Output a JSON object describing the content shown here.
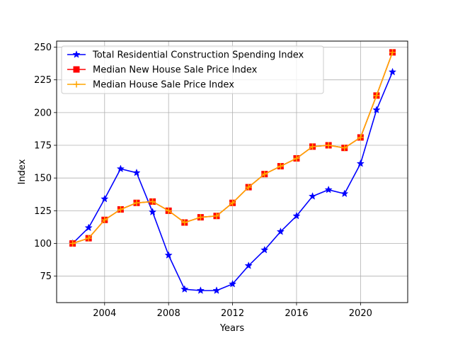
{
  "chart_data": {
    "type": "line",
    "xlabel": "Years",
    "ylabel": "Index",
    "xlim": [
      2001.0,
      2022.95
    ],
    "ylim": [
      54.8,
      254.6
    ],
    "xticks": [
      2004,
      2008,
      2012,
      2016,
      2020
    ],
    "xtick_labels": [
      "2004",
      "2008",
      "2012",
      "2016",
      "2020"
    ],
    "yticks": [
      75,
      100,
      125,
      150,
      175,
      200,
      225,
      250
    ],
    "ytick_labels": [
      "75",
      "100",
      "125",
      "150",
      "175",
      "200",
      "225",
      "250"
    ],
    "grid": true,
    "legend_position": "upper-left",
    "x": [
      2002,
      2003,
      2004,
      2005,
      2006,
      2007,
      2008,
      2009,
      2010,
      2011,
      2012,
      2013,
      2014,
      2015,
      2016,
      2017,
      2018,
      2019,
      2020,
      2021,
      2022
    ],
    "series": [
      {
        "name": "Total Residential Construction Spending Index",
        "color": "#0000ff",
        "marker": "star",
        "values": [
          100,
          112,
          134,
          157,
          154,
          124,
          91,
          65,
          64,
          64,
          69,
          83,
          95,
          109,
          121,
          136,
          141,
          138,
          161,
          202,
          231
        ]
      },
      {
        "name": "Median New House Sale Price Index",
        "color": "#ff0000",
        "marker": "square",
        "values": [
          100,
          104,
          118,
          126,
          131,
          132,
          125,
          116,
          120,
          121,
          131,
          143,
          153,
          159,
          165,
          174,
          175,
          173,
          181,
          213,
          246
        ]
      },
      {
        "name": "Median House Sale Price Index",
        "color": "#ffa500",
        "marker": "plus",
        "values": [
          100,
          104,
          118,
          126,
          131,
          132,
          125,
          116,
          120,
          121,
          131,
          143,
          153,
          159,
          165,
          174,
          175,
          173,
          181,
          213,
          246
        ]
      }
    ]
  }
}
